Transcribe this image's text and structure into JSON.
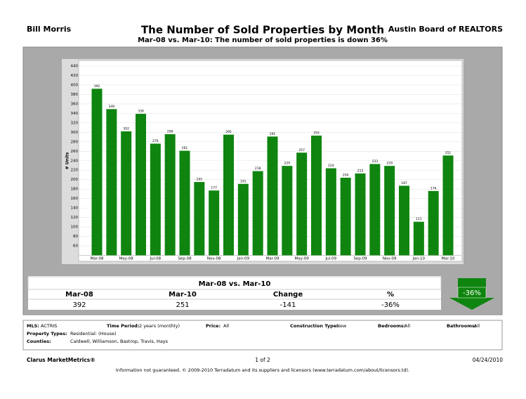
{
  "header": {
    "author": "Bill Morris",
    "organization": "Austin Board of REALTORS"
  },
  "chart_data": {
    "type": "bar",
    "title": "The Number of Sold Properties by Month",
    "subtitle": "Mar-08 vs. Mar-10:  The number of sold properties is down 36%",
    "y_label": "# Units",
    "categories": [
      "Mar-08",
      null,
      "May-08",
      null,
      "Jul-08",
      null,
      "Sep-08",
      null,
      "Nov-08",
      null,
      "Jan-09",
      null,
      "Mar-09",
      null,
      "May-09",
      null,
      "Jul-09",
      null,
      "Sep-09",
      null,
      "Nov-09",
      null,
      "Jan-10",
      null,
      "Mar-10"
    ],
    "values": [
      392,
      349,
      302,
      339,
      276,
      296,
      261,
      195,
      177,
      295,
      191,
      218,
      291,
      229,
      257,
      293,
      224,
      204,
      213,
      233,
      229,
      187,
      111,
      176,
      251
    ],
    "color": "#0f850f",
    "ylim": [
      40,
      440
    ],
    "yticks": [
      60,
      80,
      100,
      120,
      140,
      160,
      180,
      200,
      220,
      240,
      260,
      280,
      300,
      320,
      340,
      360,
      380,
      400,
      420,
      440
    ],
    "grid": true
  },
  "summary": {
    "title": "Mar-08 vs. Mar-10",
    "headers": [
      "Mar-08",
      "Mar-10",
      "Change",
      "%"
    ],
    "values": [
      "392",
      "251",
      "-141",
      "-36%"
    ],
    "badge": "-36%"
  },
  "details": {
    "mls_label": "MLS:",
    "mls": "ACTRIS",
    "period_label": "Time Period:",
    "period": "2 years (monthly)",
    "price_label": "Price:",
    "price": "All",
    "construction_label": "Construction Type:",
    "construction": "New",
    "bedrooms_label": "Bedrooms:",
    "bedrooms": "All",
    "bathrooms_label": "Bathrooms:",
    "bathrooms": "All",
    "types_label": "Property Types:",
    "types": "Residential: (House)",
    "counties_label": "Counties:",
    "counties": "Caldwell, Williamson, Bastrop, Travis, Hays"
  },
  "footer": {
    "brand": "Clarus MarketMetrics®",
    "page": "1 of 2",
    "date": "04/24/2010",
    "disclaimer": "Information not guaranteed.  © 2009-2010 Terradatum and its suppliers and licensors (www.terradatum.com/about/licensors.td)."
  }
}
